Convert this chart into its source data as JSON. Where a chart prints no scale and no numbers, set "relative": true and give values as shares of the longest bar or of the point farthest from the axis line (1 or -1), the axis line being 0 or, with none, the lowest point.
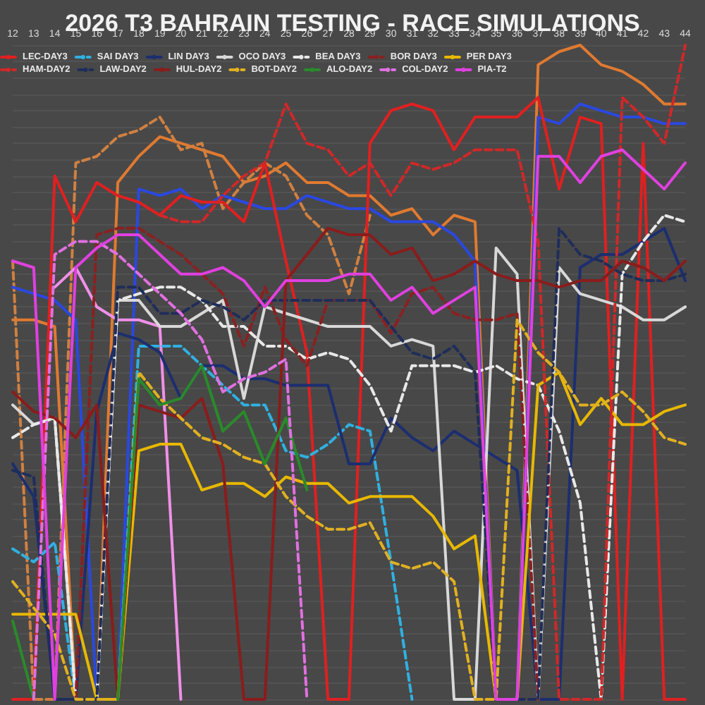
{
  "chart_data": {
    "type": "line",
    "title": "2026 T3 BAHRAIN TESTING - RACE SIMULATIONS",
    "relative": true,
    "tick_labels": "x",
    "grid": "y",
    "legend": "top left",
    "marker": "none",
    "line_style": "solid",
    "categories": [
      "12",
      "13",
      "14",
      "15",
      "16",
      "17",
      "18",
      "19",
      "20",
      "21",
      "22",
      "23",
      "24",
      "25",
      "26",
      "27",
      "28",
      "29",
      "30",
      "31",
      "32",
      "33",
      "34",
      "35",
      "36",
      "37",
      "38",
      "39",
      "40",
      "41",
      "42",
      "43",
      "44"
    ],
    "series": [
      {
        "color": "#e07a30",
        "values": [
          0.58,
          0.58,
          0.57,
          0,
          0,
          0.79,
          0.83,
          0.86,
          0.85,
          0.84,
          0.83,
          0.79,
          0.8,
          0.82,
          0.79,
          0.79,
          0.77,
          0.77,
          0.74,
          0.75,
          0.71,
          0.74,
          0.73,
          0,
          0,
          0.97,
          0.99,
          1.0,
          0.97,
          0.96,
          0.94,
          0.91,
          0.91
        ]
      },
      {
        "color": "#d08040",
        "line_style": "dashed",
        "values": [
          0.67,
          0,
          0,
          0.82,
          0.83,
          0.86,
          0.87,
          0.89,
          0.84,
          0.85,
          0.75,
          0.79,
          0.82,
          0.8,
          0.74,
          0.71,
          0.62,
          0.74,
          null,
          null,
          null,
          null,
          null,
          null,
          null,
          null,
          null,
          null,
          null,
          null,
          null,
          null,
          null
        ]
      },
      {
        "color": "#2a48e0",
        "values": [
          0.63,
          0.62,
          0.61,
          0.58,
          0,
          0,
          0.78,
          0.77,
          0.78,
          0.75,
          0.77,
          0.76,
          0.75,
          0.75,
          0.77,
          0.76,
          0.75,
          0.75,
          0.73,
          0.73,
          0.73,
          0.71,
          0.67,
          0,
          0,
          0.89,
          0.88,
          0.91,
          0.9,
          0.89,
          0.89,
          0.88,
          0.88
        ]
      },
      {
        "color": "#f090e8",
        "values": [
          null,
          null,
          0.63,
          0.66,
          0.6,
          0.58,
          0.58,
          0.57,
          0,
          null,
          null,
          null,
          null,
          null,
          null,
          null,
          null,
          null,
          null,
          null,
          null,
          null,
          null,
          null,
          null,
          null,
          null,
          null,
          null,
          null,
          null,
          null,
          null
        ]
      },
      {
        "name": "LEC-DAY3",
        "color": "#e02020",
        "values": [
          0,
          0,
          0.8,
          0.73,
          0.79,
          0.77,
          0.76,
          0.74,
          0.77,
          0.76,
          0.76,
          0.73,
          0.82,
          0.67,
          0.53,
          0,
          0,
          0.85,
          0.9,
          0.91,
          0.9,
          0.84,
          0.89,
          0.89,
          0.89,
          0.92,
          0.78,
          0.89,
          0.88,
          0,
          0.85,
          0,
          0
        ]
      },
      {
        "name": "SAI DAY3",
        "color": "#30b0e0",
        "line_style": "dashed",
        "values": [
          0.23,
          0.21,
          0.24,
          0,
          0,
          0,
          0.54,
          0.54,
          0.54,
          0.51,
          0.48,
          0.45,
          0.45,
          0.38,
          0.37,
          0.39,
          0.42,
          0.41,
          0.21,
          0,
          null,
          null,
          null,
          null,
          null,
          null,
          null,
          null,
          null,
          null,
          null,
          null,
          null
        ]
      },
      {
        "name": "LIN DAY3",
        "color": "#1c2e70",
        "values": [
          0.36,
          0.31,
          0,
          0,
          0.44,
          0.56,
          0.55,
          0.53,
          0.46,
          0.51,
          0.51,
          0.49,
          0.49,
          0.48,
          0.48,
          0.48,
          0.36,
          0.36,
          0.43,
          0.4,
          0.38,
          0.41,
          0.39,
          0.37,
          0.35,
          0,
          0,
          0.66,
          0.68,
          0.68,
          0.7,
          0.72,
          0.64
        ]
      },
      {
        "name": "OCO DAY3",
        "color": "#d8d8d8",
        "values": [
          0.45,
          0.42,
          0.43,
          0,
          0,
          0.61,
          0.61,
          0.57,
          0.57,
          0.59,
          0.61,
          0.46,
          0.6,
          0.59,
          0.58,
          0.57,
          0.57,
          0.57,
          0.54,
          0.55,
          0.54,
          0,
          0,
          0.69,
          0.65,
          0,
          0.66,
          0.62,
          0.61,
          0.6,
          0.58,
          0.58,
          0.6
        ]
      },
      {
        "name": "BEA DAY3",
        "color": "#e8e8e8",
        "line_style": "dashed",
        "values": [
          0.4,
          0.42,
          0.43,
          0,
          0,
          0.61,
          0.62,
          0.63,
          0.63,
          0.61,
          0.57,
          0.57,
          0.54,
          0.54,
          0.52,
          0.53,
          0.52,
          0.48,
          0.41,
          0.51,
          0.51,
          0.51,
          0.5,
          0.51,
          0.49,
          0.48,
          0.41,
          0.3,
          0,
          0.65,
          0.7,
          0.74,
          0.73
        ]
      },
      {
        "name": "BOR DAY3",
        "color": "#8b2020",
        "line_style": "dashed",
        "values": [
          null,
          null,
          null,
          0,
          0.71,
          0.72,
          0.72,
          0.7,
          0.68,
          0.65,
          0.62,
          0.54,
          0.63,
          0.55,
          0.51,
          0.61,
          0.61,
          0.61,
          0.56,
          0.62,
          0.63,
          0.59,
          0.58,
          0.58,
          0.59,
          0,
          null,
          null,
          null,
          null,
          null,
          null,
          null
        ]
      },
      {
        "name": "PER DAY3",
        "color": "#e8b800",
        "values": [
          0.13,
          0.13,
          0.13,
          0.13,
          0,
          0,
          0.38,
          0.39,
          0.39,
          0.32,
          0.33,
          0.33,
          0.31,
          0.34,
          0.33,
          0.33,
          0.3,
          0.31,
          0.31,
          0.31,
          0.28,
          0.23,
          0.25,
          0,
          0,
          0.48,
          0.5,
          0.42,
          0.46,
          0.42,
          0.42,
          0.44,
          0.45
        ]
      },
      {
        "name": "HAM-DAY2",
        "color": "#d02828",
        "line_style": "dashed",
        "values": [
          null,
          null,
          null,
          null,
          null,
          null,
          null,
          0.74,
          0.73,
          0.73,
          0.77,
          0.8,
          0.82,
          0.91,
          0.85,
          0.84,
          0.8,
          0.82,
          0.77,
          0.82,
          0.81,
          0.82,
          0.84,
          0.84,
          0.84,
          0.7,
          0,
          0,
          0,
          0.92,
          0.89,
          0.85,
          1.0
        ]
      },
      {
        "name": "LAW-DAY2",
        "color": "#1f2d5a",
        "line_style": "dashed",
        "values": [
          0.35,
          0.34,
          0,
          0,
          0,
          0.63,
          0.63,
          0.59,
          0.59,
          0.61,
          0.6,
          0.58,
          0.61,
          0.61,
          0.61,
          0.61,
          0.61,
          0.61,
          0.57,
          0.53,
          0.52,
          0.54,
          0.5,
          0,
          0,
          0,
          0.72,
          0.68,
          0.67,
          0.65,
          0.64,
          0.64,
          0.65
        ]
      },
      {
        "name": "HUL-DAY2",
        "color": "#8a1c1c",
        "values": [
          0.47,
          0.44,
          0.43,
          0.4,
          0.45,
          0,
          0.45,
          0.44,
          0.43,
          0.46,
          0.36,
          0,
          0,
          0.64,
          0.68,
          0.72,
          0.71,
          0.71,
          0.68,
          0.69,
          0.64,
          0.65,
          0.67,
          0.65,
          0.64,
          0.64,
          0.63,
          0.64,
          0.64,
          0.67,
          0.66,
          0.64,
          0.67
        ]
      },
      {
        "name": "BOT-DAY2",
        "color": "#e0b020",
        "line_style": "dashed",
        "values": [
          0.18,
          0.14,
          0.1,
          0,
          0,
          0,
          0.5,
          0.46,
          0.43,
          0.4,
          0.39,
          0.37,
          0.36,
          0.31,
          0.28,
          0.26,
          0.26,
          0.27,
          0.21,
          0.2,
          0.21,
          0.18,
          0,
          0,
          0.58,
          0.53,
          0.5,
          0.45,
          0.45,
          0.47,
          0.44,
          0.4,
          0.39
        ]
      },
      {
        "name": "ALO-DAY2",
        "color": "#2a8a2a",
        "values": [
          0.12,
          0,
          null,
          null,
          null,
          0,
          0.49,
          0.45,
          0.46,
          0.51,
          0.41,
          0.44,
          0.36,
          0.43,
          0.32,
          null,
          null,
          null,
          null,
          null,
          null,
          null,
          null,
          null,
          null,
          null,
          null,
          null,
          null,
          null,
          null,
          null,
          null
        ]
      },
      {
        "name": "COL-DAY2",
        "color": "#e070e0",
        "line_style": "dashed",
        "values": [
          null,
          0,
          0.68,
          0.7,
          0.7,
          0.68,
          0.65,
          0.62,
          0.59,
          0.55,
          0.47,
          0.49,
          0.5,
          0.52,
          0,
          null,
          null,
          null,
          null,
          null,
          null,
          null,
          null,
          null,
          null,
          null,
          null,
          null,
          null,
          null,
          null,
          null,
          null
        ]
      },
      {
        "name": "PIA-T2",
        "color": "#e040e0",
        "values": [
          0.67,
          0.66,
          0,
          0.66,
          0.69,
          0.71,
          0.71,
          0.68,
          0.65,
          0.65,
          0.66,
          0.64,
          0.6,
          0.64,
          0.64,
          0.64,
          0.65,
          0.65,
          0.61,
          0.63,
          0.59,
          0.61,
          0.63,
          0,
          0,
          0.83,
          0.83,
          0.79,
          0.83,
          0.84,
          0.81,
          0.78,
          0.82
        ]
      }
    ]
  }
}
